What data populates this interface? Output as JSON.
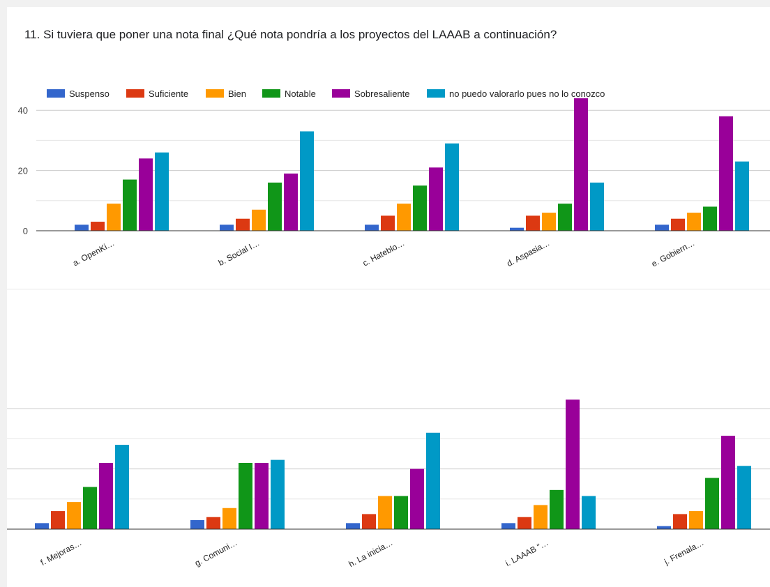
{
  "question": "11. Si tuviera que poner una nota final ¿Qué nota pondría a los proyectos del LAAAB a continuación?",
  "chart_data": {
    "type": "bar",
    "legend_position": "top",
    "series": [
      {
        "name": "Suspenso",
        "color": "#3366cc"
      },
      {
        "name": "Suficiente",
        "color": "#dc3912"
      },
      {
        "name": "Bien",
        "color": "#ff9900"
      },
      {
        "name": "Notable",
        "color": "#109618"
      },
      {
        "name": "Sobresaliente",
        "color": "#990099"
      },
      {
        "name": "no puedo valorarlo pues no lo conozco",
        "color": "#0099c6"
      }
    ],
    "panels": [
      {
        "categories": [
          "a. OpenKi…",
          "b. Social I…",
          "c. Hateblo…",
          "d. Aspasia…",
          "e. Gobiern…"
        ],
        "values": [
          [
            2,
            3,
            9,
            17,
            24,
            26
          ],
          [
            2,
            4,
            7,
            16,
            19,
            33
          ],
          [
            2,
            5,
            9,
            15,
            21,
            29
          ],
          [
            1,
            5,
            6,
            9,
            44,
            16
          ],
          [
            2,
            4,
            6,
            8,
            38,
            23
          ]
        ],
        "ylim": [
          0,
          45
        ],
        "yticks": [
          "0",
          "20",
          "40"
        ],
        "grid": true
      },
      {
        "categories": [
          "f. Mejoras…",
          "g. Comuni…",
          "h. La inicia…",
          "i. LAAAB “…",
          "j. Frenala…"
        ],
        "values": [
          [
            2,
            6,
            9,
            14,
            22,
            28
          ],
          [
            3,
            4,
            7,
            22,
            22,
            23
          ],
          [
            2,
            5,
            11,
            11,
            20,
            32
          ],
          [
            2,
            4,
            8,
            13,
            43,
            11
          ],
          [
            1,
            5,
            6,
            17,
            31,
            21
          ]
        ],
        "ylim": [
          0,
          45
        ],
        "yticks": [],
        "grid": true
      }
    ]
  }
}
